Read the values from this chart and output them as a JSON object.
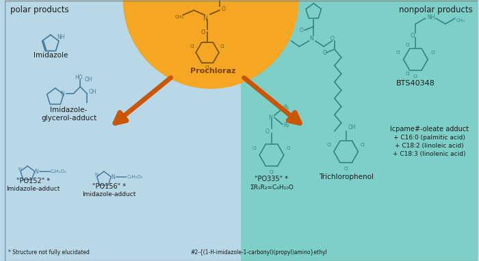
{
  "bg_light_blue": "#b8d8e8",
  "bg_teal": "#7ecfc8",
  "bg_orange": "#f5a623",
  "arrow_color": "#cc5500",
  "struct_color_left": "#4a7a9b",
  "struct_color_right": "#2a8a7a",
  "struct_color_prochloraz": "#7a5200",
  "text_color": "#1a1a1a",
  "title_polar": "polar products",
  "title_nonpolar": "nonpolar products",
  "prochloraz_label": "Prochloraz",
  "footnote1": "* Structure not fully elucidated",
  "footnote2": "#2-{(1-H-imidazole-1-carbonyl)(propyl)amino}ethyl",
  "labels": {
    "imidazole": "Imidazole",
    "imidazole_glycerol_1": "Imidazole-",
    "imidazole_glycerol_2": "glycerol-adduct",
    "po152": "\"PO152\" *",
    "po152_sub": "Imidazole-adduct",
    "po156": "\"PO156\" *",
    "po156_sub": "Imidazole-adduct",
    "po335": "\"PO335\" *",
    "po335_sub": "ΣR₁R₂=C₆H₁₀O",
    "trichlorophenol": "Trichlorophenol",
    "bts40348": "BTS40348",
    "lcpame_oleate": "lcpame#-oleate adduct",
    "c160": "+ C16:0 (palmitic acid)",
    "c182": "+ C18:2 (linoleic acid)",
    "c183": "+ C18:3 (linolenic acid)"
  }
}
